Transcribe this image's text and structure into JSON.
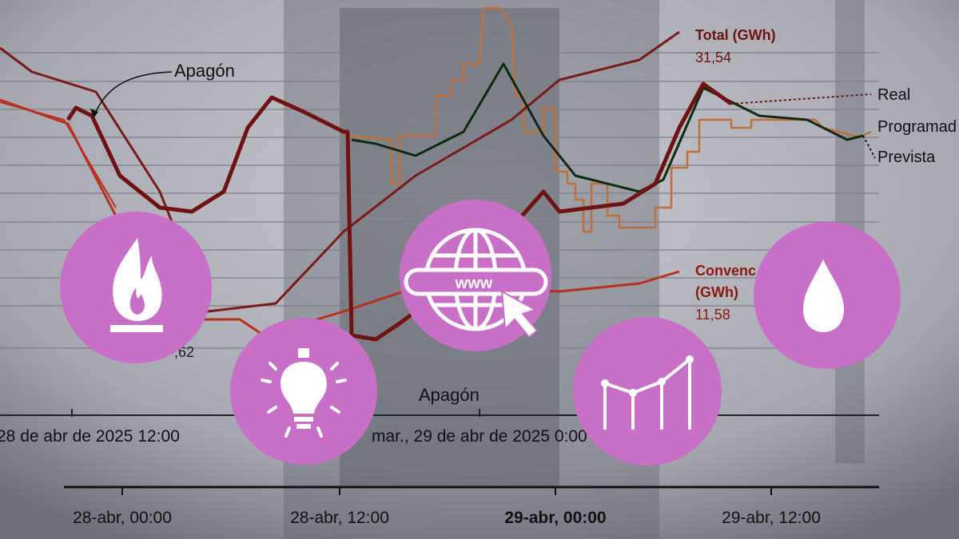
{
  "annotations": {
    "blackout_top": "Apagón",
    "blackout_bottom": "Apagón"
  },
  "labels": {
    "total_name": "Total (GWh)",
    "total_value": "31,54",
    "real": "Real",
    "scheduled": "Programad",
    "forecast": "Prevista",
    "conventional_name": "Convenc",
    "conventional_unit": "(GWh)",
    "conventional_value": "11,58",
    "left_value": ",62"
  },
  "top_axis": [
    "28 de abr de 2025 12:00",
    "mar., 29 de abr de 2025 0:00"
  ],
  "bottom_axis": [
    "28-abr, 00:00",
    "28-abr, 12:00",
    "29-abr, 00:00",
    "29-abr, 12:00"
  ]
}
